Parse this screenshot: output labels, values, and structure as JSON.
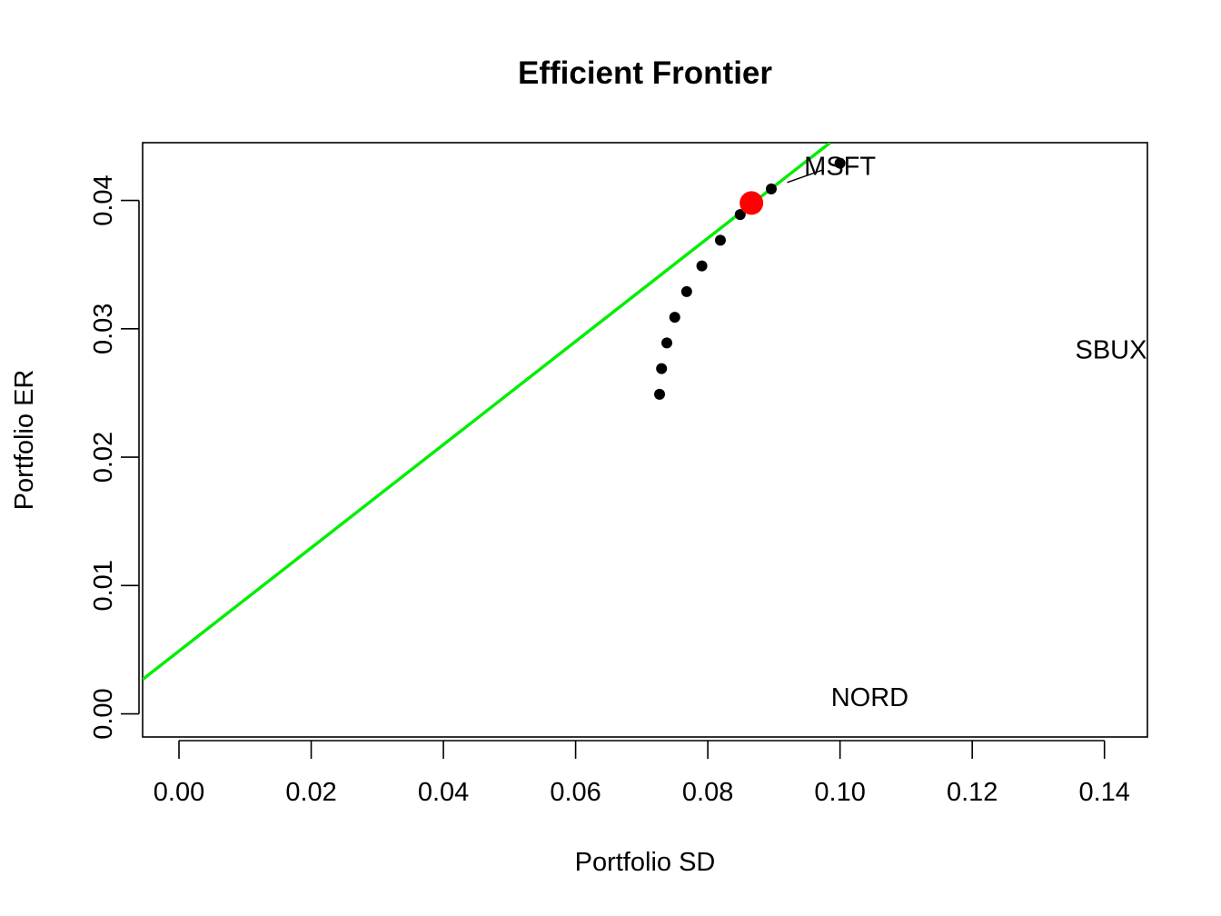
{
  "chart_data": {
    "type": "scatter",
    "title": "Efficient Frontier",
    "xlabel": "Portfolio SD",
    "ylabel": "Portfolio ER",
    "xlim": [
      -0.0055,
      0.1465
    ],
    "ylim": [
      -0.0018,
      0.0445
    ],
    "x_ticks": [
      0.0,
      0.02,
      0.04,
      0.06,
      0.08,
      0.1,
      0.12,
      0.14
    ],
    "x_tick_labels": [
      "0.00",
      "0.02",
      "0.04",
      "0.06",
      "0.08",
      "0.10",
      "0.12",
      "0.14"
    ],
    "y_ticks": [
      0.0,
      0.01,
      0.02,
      0.03,
      0.04
    ],
    "y_tick_labels": [
      "0.00",
      "0.01",
      "0.02",
      "0.03",
      "0.04"
    ],
    "grid": false,
    "frontier_points": {
      "color": "#000000",
      "points": [
        {
          "x": 0.0727,
          "y": 0.0249
        },
        {
          "x": 0.073,
          "y": 0.0269
        },
        {
          "x": 0.0738,
          "y": 0.0289
        },
        {
          "x": 0.075,
          "y": 0.0309
        },
        {
          "x": 0.0768,
          "y": 0.0329
        },
        {
          "x": 0.0791,
          "y": 0.0349
        },
        {
          "x": 0.0819,
          "y": 0.0369
        },
        {
          "x": 0.0849,
          "y": 0.0389
        },
        {
          "x": 0.0896,
          "y": 0.0409
        },
        {
          "x": 0.1,
          "y": 0.0429
        }
      ]
    },
    "tangency_portfolio": {
      "x": 0.0866,
      "y": 0.0398,
      "color": "#ff0000"
    },
    "tangent_line": {
      "color": "#00ee00",
      "points": [
        {
          "x": -0.0055,
          "y": 0.00268
        },
        {
          "x": 0.0985,
          "y": 0.0445
        }
      ]
    },
    "asset_labels": [
      {
        "text": "MSFT",
        "x": 0.1,
        "y": 0.0427
      },
      {
        "text": "SBUX",
        "x": 0.141,
        "y": 0.0284
      },
      {
        "text": "NORD",
        "x": 0.1045,
        "y": 0.0013
      }
    ],
    "label_leader": {
      "from": {
        "x": 0.092,
        "y": 0.0414
      },
      "to": {
        "x": 0.0975,
        "y": 0.0424
      }
    }
  }
}
